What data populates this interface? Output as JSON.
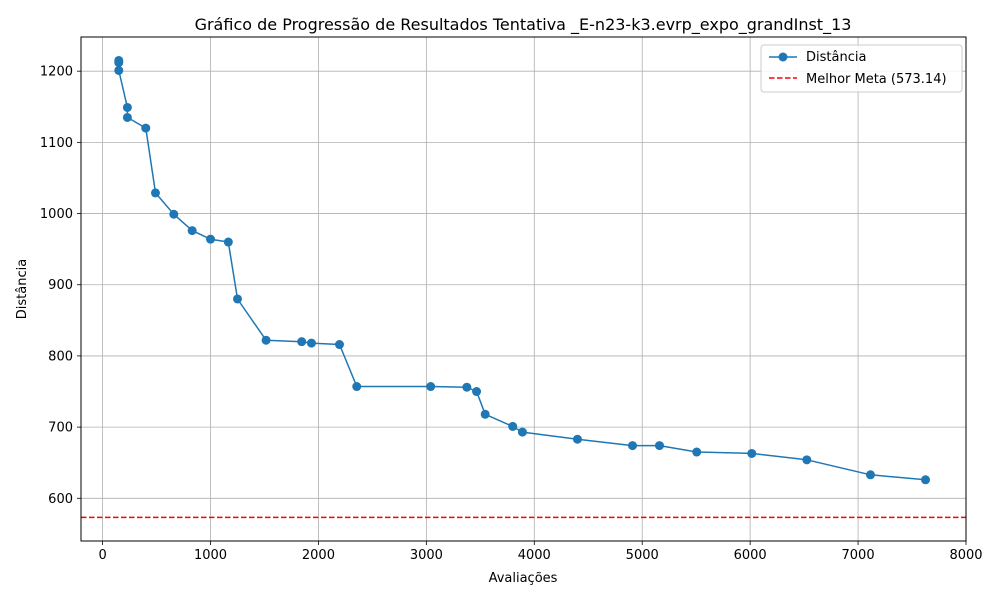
{
  "chart_data": {
    "type": "line",
    "title": "Gráfico de Progressão de Resultados Tentativa _E-n23-k3.evrp_expo_grandInst_13",
    "xlabel": "Avaliações",
    "ylabel": "Distância",
    "xlim": [
      -200,
      8000
    ],
    "ylim": [
      540,
      1248
    ],
    "xticks": [
      0,
      1000,
      2000,
      3000,
      4000,
      5000,
      6000,
      7000,
      8000
    ],
    "xtick_labels": [
      "0",
      "1000",
      "2000",
      "3000",
      "4000",
      "5000",
      "6000",
      "7000",
      "8000"
    ],
    "yticks": [
      600,
      700,
      800,
      900,
      1000,
      1100,
      1200
    ],
    "ytick_labels": [
      "600",
      "700",
      "800",
      "900",
      "1000",
      "1100",
      "1200"
    ],
    "grid": true,
    "legend_position": "top-right",
    "series": [
      {
        "name": "Distância",
        "color": "#1f77b4",
        "marker": "circle",
        "x": [
          150,
          150,
          150,
          230,
          230,
          400,
          490,
          660,
          830,
          1000,
          1165,
          1250,
          1515,
          1845,
          1935,
          2195,
          2355,
          3040,
          3375,
          3465,
          3545,
          3800,
          3890,
          4400,
          4910,
          5160,
          5505,
          6015,
          6525,
          7115,
          7625
        ],
        "y": [
          1215,
          1212,
          1201,
          1149,
          1135,
          1120,
          1029,
          999,
          976,
          964,
          960,
          880,
          822,
          820,
          818,
          816,
          757,
          757,
          756,
          750,
          718,
          701,
          693,
          683,
          674,
          674,
          665,
          663,
          654,
          633,
          626
        ]
      }
    ],
    "reference_lines": [
      {
        "name": "Melhor Meta (573.14)",
        "y": 573.14,
        "color": "#ff0000",
        "style": "dashed"
      }
    ]
  }
}
